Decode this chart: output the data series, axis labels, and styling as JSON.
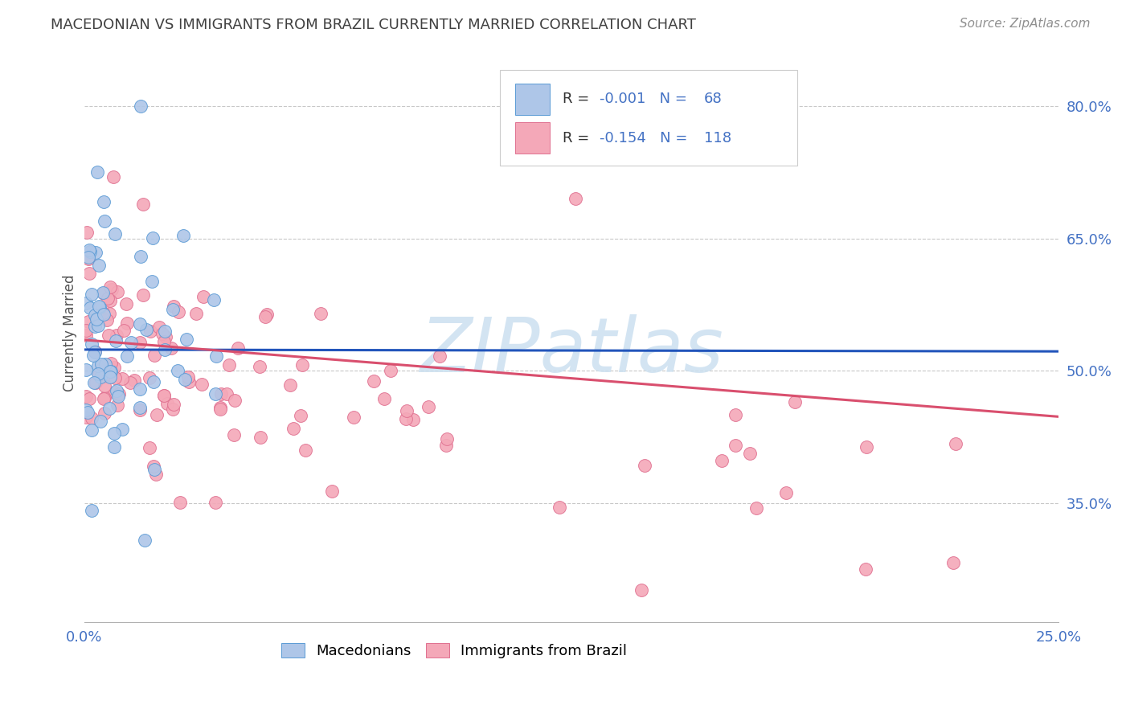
{
  "title": "MACEDONIAN VS IMMIGRANTS FROM BRAZIL CURRENTLY MARRIED CORRELATION CHART",
  "source": "Source: ZipAtlas.com",
  "ylabel": "Currently Married",
  "ytick_labels": [
    "80.0%",
    "65.0%",
    "50.0%",
    "35.0%"
  ],
  "ytick_values": [
    0.8,
    0.65,
    0.5,
    0.35
  ],
  "xlim": [
    0.0,
    0.25
  ],
  "ylim": [
    0.215,
    0.87
  ],
  "legend_macedonians": "Macedonians",
  "legend_brazil": "Immigrants from Brazil",
  "R_macedonians": "-0.001",
  "N_macedonians": "68",
  "R_brazil": "-0.154",
  "N_brazil": "118",
  "color_macedonians_fill": "#aec6e8",
  "color_macedonians_edge": "#5b9bd5",
  "color_brazil_fill": "#f4a8b8",
  "color_brazil_edge": "#e07090",
  "color_trend_macedonians": "#2255bb",
  "color_trend_brazil": "#d94f6e",
  "color_axis_labels": "#4472c4",
  "color_title": "#404040",
  "color_source": "#909090",
  "color_grid": "#c8c8c8",
  "watermark_color": "#cce0f0",
  "watermark_text": "ZIPatlas",
  "mac_trend_y0": 0.524,
  "mac_trend_y1": 0.522,
  "bra_trend_y0": 0.535,
  "bra_trend_y1": 0.448
}
